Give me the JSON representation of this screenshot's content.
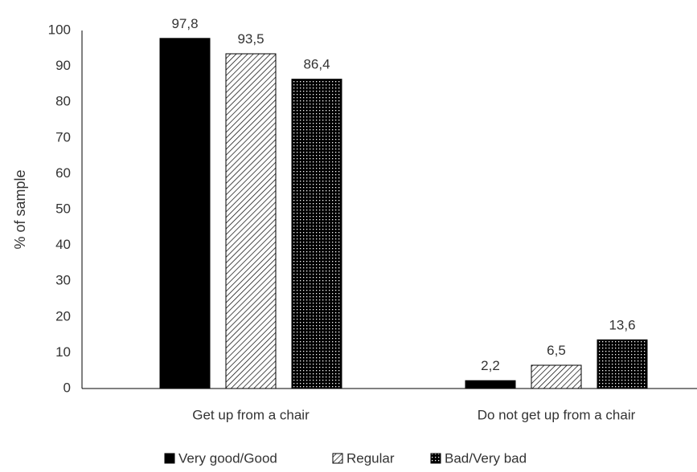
{
  "chart_data": {
    "type": "bar",
    "ylabel": "% of sample",
    "xlabel": "",
    "ylim": [
      0,
      100
    ],
    "yticks": [
      0,
      10,
      20,
      30,
      40,
      50,
      60,
      70,
      80,
      90,
      100
    ],
    "grid": false,
    "legend": "bottom",
    "categories": [
      "Get up from a chair",
      "Do not get up from a chair"
    ],
    "series": [
      {
        "name": "Very good/Good",
        "values": [
          97.8,
          2.2
        ],
        "labels": [
          "97,8",
          "2,2"
        ],
        "pattern": "solid",
        "color": "#000000"
      },
      {
        "name": "Regular",
        "values": [
          93.5,
          6.5
        ],
        "labels": [
          "93,5",
          "6,5"
        ],
        "pattern": "diagonal-hatch",
        "color": "#000000"
      },
      {
        "name": "Bad/Very bad",
        "values": [
          86.4,
          13.6
        ],
        "labels": [
          "86,4",
          "13,6"
        ],
        "pattern": "dotted",
        "color": "#000000"
      }
    ]
  }
}
